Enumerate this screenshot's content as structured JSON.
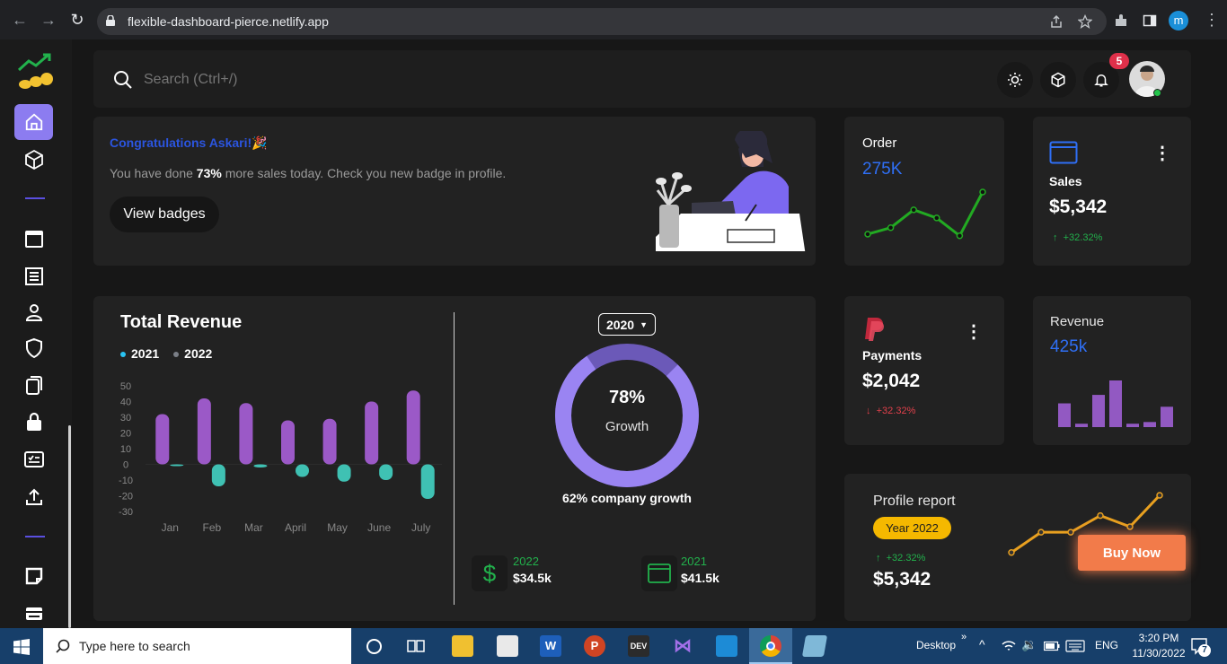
{
  "browser": {
    "url": "flexible-dashboard-pierce.netlify.app",
    "profile_initial": "m"
  },
  "search": {
    "placeholder": "Search (Ctrl+/)"
  },
  "header": {
    "notification_count": "5"
  },
  "congrats": {
    "title": "Congratulations Askari!🎉",
    "message_pre": "You have done ",
    "message_bold": "73%",
    "message_post": " more sales today. Check you new badge in profile.",
    "button": "View badges"
  },
  "order": {
    "title": "Order",
    "value": "275K",
    "chart_color": "#22aa22",
    "points": [
      10,
      18,
      40,
      30,
      8,
      62
    ]
  },
  "sales": {
    "title": "Sales",
    "value": "$5,342",
    "change": "+32.32%"
  },
  "total_revenue": {
    "title": "Total Revenue",
    "legend": [
      {
        "name": "2021",
        "color": "#29c3f2"
      },
      {
        "name": "2022",
        "color": "#7b7f87"
      }
    ],
    "year_selector": "2020",
    "growth_percent": "78%",
    "growth_label": "Growth",
    "company_growth": "62% company growth",
    "summary": [
      {
        "year": "2022",
        "amount": "$34.5k"
      },
      {
        "year": "2021",
        "amount": "$41.5k"
      }
    ]
  },
  "chart_data": {
    "type": "bar",
    "categories": [
      "Jan",
      "Feb",
      "Mar",
      "April",
      "May",
      "June",
      "July"
    ],
    "series": [
      {
        "name": "2021",
        "values": [
          32,
          42,
          39,
          28,
          29,
          40,
          47
        ],
        "color": "#9b59c7"
      },
      {
        "name": "2022",
        "values": [
          -1,
          -14,
          -2,
          -8,
          -11,
          -10,
          -22
        ],
        "color": "#3fc1b3"
      }
    ],
    "ylim": [
      -30,
      50
    ],
    "yticks": [
      "50",
      "40",
      "30",
      "20",
      "10",
      "0",
      "-10",
      "-20",
      "-30"
    ]
  },
  "payments": {
    "title": "Payments",
    "value": "$2,042",
    "change": "+32.32%"
  },
  "revenue": {
    "title": "Revenue",
    "value": "425k",
    "bars": [
      28,
      4,
      38,
      55,
      4,
      6,
      24
    ]
  },
  "profile_report": {
    "title": "Profile report",
    "year_badge": "Year 2022",
    "change": "+32.32%",
    "value": "$5,342",
    "button": "Buy Now",
    "points": [
      8,
      30,
      30,
      48,
      36,
      70
    ]
  },
  "taskbar": {
    "search_placeholder": "Type here to search",
    "desktop_label": "Desktop",
    "language": "ENG",
    "time": "3:20 PM",
    "date": "11/30/2022",
    "notifications": "7"
  }
}
